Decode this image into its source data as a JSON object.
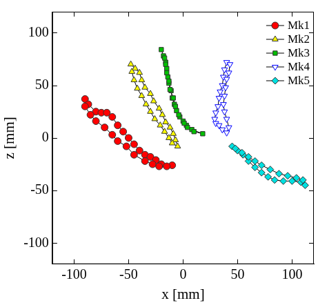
{
  "chart_data": {
    "type": "scatter",
    "x_label": "x [mm]",
    "y_label": "z [mm]",
    "xlim": [
      -120,
      120
    ],
    "xticks": [
      -100,
      -50,
      0,
      50,
      100
    ],
    "ylim": [
      -120,
      120
    ],
    "yticks": [
      -100,
      -50,
      0,
      50,
      100
    ],
    "grid": false,
    "legend": "top right",
    "line_style": "solid",
    "series": [
      {
        "name": "Mk1",
        "color": "#ff0000",
        "marker": "circle",
        "x": [
          -90,
          -87,
          -80,
          -75,
          -70,
          -65,
          -60,
          -55,
          -50,
          -45,
          -40,
          -35,
          -30,
          -25,
          -20,
          -10,
          -15,
          -22,
          -28,
          -35,
          -45,
          -52,
          -60,
          -65,
          -72,
          -80,
          -85,
          -90
        ],
        "values": [
          37,
          32,
          25,
          24,
          24,
          20,
          12,
          6,
          0,
          -6,
          -12,
          -16,
          -18,
          -21,
          -25,
          -26,
          -27,
          -27,
          -25,
          -22,
          -16,
          -8,
          -3,
          3,
          10,
          16,
          22,
          30
        ]
      },
      {
        "name": "Mk2",
        "color": "#ffff00",
        "marker": "triangle",
        "x": [
          -48,
          -44,
          -40,
          -38,
          -35,
          -30,
          -27,
          -22,
          -19,
          -16,
          -12,
          -9,
          -7,
          -5,
          -10,
          -13,
          -17,
          -21,
          -26,
          -30,
          -34,
          -38,
          -42,
          -45,
          -47
        ],
        "values": [
          70,
          66,
          62,
          55,
          48,
          42,
          35,
          28,
          22,
          15,
          10,
          4,
          -2,
          -8,
          -5,
          0,
          6,
          12,
          18,
          25,
          32,
          40,
          47,
          55,
          63
        ]
      },
      {
        "name": "Mk3",
        "color": "#00c000",
        "marker": "square",
        "x": [
          -20,
          -18,
          -16,
          -15,
          -14,
          -13,
          -11,
          -10,
          -8,
          -6,
          -3,
          0,
          3,
          8,
          18,
          10,
          4,
          1,
          -4,
          -7,
          -9,
          -12,
          -13,
          -15,
          -16,
          -17
        ],
        "values": [
          84,
          78,
          72,
          66,
          58,
          52,
          45,
          38,
          32,
          26,
          20,
          16,
          12,
          8,
          4,
          6,
          10,
          14,
          22,
          30,
          38,
          46,
          54,
          62,
          70,
          76
        ]
      },
      {
        "name": "Mk4",
        "color": "#0000ff",
        "marker": "triangle_down_open",
        "x": [
          40,
          38,
          37,
          36,
          34,
          33,
          32,
          30,
          29,
          30,
          33,
          36,
          40,
          42,
          40,
          38,
          37,
          38,
          39,
          40,
          42,
          43
        ],
        "values": [
          72,
          65,
          58,
          50,
          44,
          38,
          30,
          24,
          18,
          14,
          12,
          8,
          5,
          10,
          18,
          25,
          32,
          40,
          48,
          56,
          62,
          70
        ]
      },
      {
        "name": "Mk5",
        "color": "#00e0e0",
        "marker": "diamond",
        "x": [
          45,
          50,
          55,
          60,
          66,
          72,
          78,
          84,
          92,
          100,
          108,
          112,
          110,
          104,
          96,
          88,
          80,
          72,
          66,
          60,
          54,
          48
        ],
        "values": [
          -8,
          -12,
          -16,
          -22,
          -28,
          -33,
          -37,
          -40,
          -41,
          -41,
          -42,
          -45,
          -40,
          -38,
          -36,
          -34,
          -30,
          -26,
          -22,
          -18,
          -14,
          -10
        ]
      }
    ]
  }
}
